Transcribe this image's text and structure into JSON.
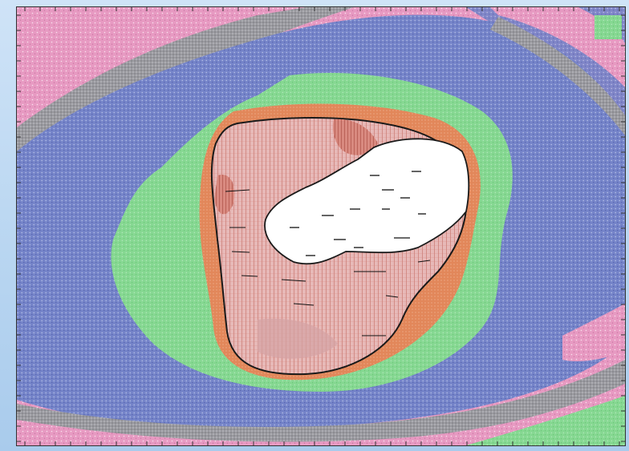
{
  "map": {
    "zones": [
      {
        "id": "outer-pink",
        "color": "#e58ab8"
      },
      {
        "id": "stippled-gray-band",
        "color": "#8e8e8e"
      },
      {
        "id": "blue-zone",
        "color": "#6f80c8"
      },
      {
        "id": "green-zone",
        "color": "#7fd68c"
      },
      {
        "id": "orange-rim",
        "color": "#e38a5a"
      },
      {
        "id": "red-hatched-zone",
        "color": "#d9a4a2"
      },
      {
        "id": "white-core",
        "color": "#ffffff"
      }
    ]
  }
}
